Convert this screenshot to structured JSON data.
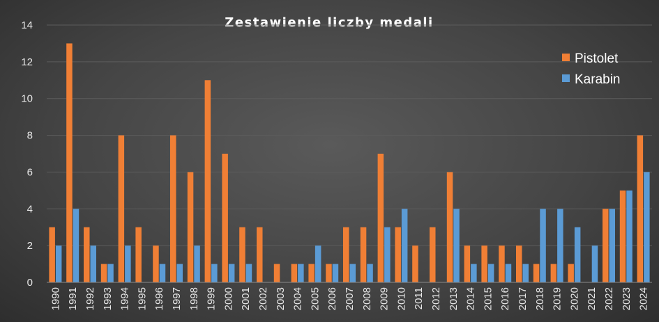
{
  "chart_data": {
    "type": "bar",
    "title": "Zestawienie liczby medali",
    "categories": [
      "1990",
      "1991",
      "1992",
      "1993",
      "1994",
      "1995",
      "1996",
      "1997",
      "1998",
      "1999",
      "2000",
      "2001",
      "2002",
      "2003",
      "2004",
      "2005",
      "2006",
      "2007",
      "2008",
      "2009",
      "2010",
      "2011",
      "2012",
      "2013",
      "2014",
      "2015",
      "2016",
      "2017",
      "2018",
      "2019",
      "2020",
      "2021",
      "2022",
      "2023",
      "2024"
    ],
    "series": [
      {
        "name": "Pistolet",
        "color": "#f07f35",
        "values": [
          3,
          13,
          3,
          1,
          8,
          3,
          2,
          8,
          6,
          11,
          7,
          3,
          3,
          1,
          1,
          1,
          1,
          3,
          3,
          7,
          3,
          2,
          3,
          6,
          2,
          2,
          2,
          2,
          1,
          1,
          1,
          0,
          4,
          5,
          8
        ]
      },
      {
        "name": "Karabin",
        "color": "#5b9bd5",
        "values": [
          2,
          4,
          2,
          1,
          2,
          0,
          1,
          1,
          2,
          1,
          1,
          1,
          0,
          0,
          1,
          2,
          1,
          1,
          1,
          3,
          4,
          0,
          0,
          4,
          1,
          1,
          1,
          1,
          4,
          4,
          3,
          2,
          4,
          5,
          6
        ]
      }
    ],
    "ylim": [
      0,
      14
    ],
    "yticks": [
      0,
      2,
      4,
      6,
      8,
      10,
      12,
      14
    ],
    "grid": true,
    "legend_position": "top-right"
  }
}
